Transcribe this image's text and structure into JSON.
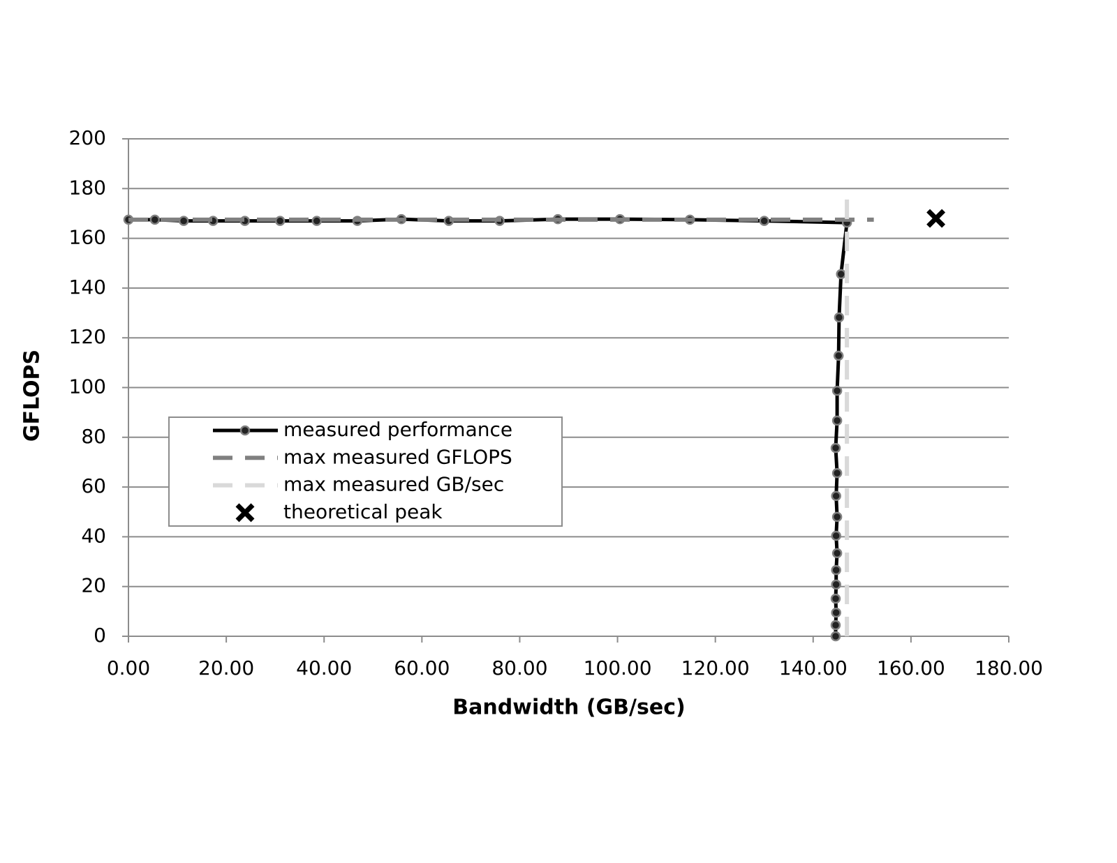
{
  "chart_data": {
    "type": "line",
    "x_label": "Bandwidth (GB/sec)",
    "y_label": "GFLOPS",
    "xlim": [
      0,
      180
    ],
    "ylim": [
      0,
      200
    ],
    "xticks": [
      {
        "value": 0,
        "label": "0.00"
      },
      {
        "value": 20,
        "label": "20.00"
      },
      {
        "value": 40,
        "label": "40.00"
      },
      {
        "value": 60,
        "label": "60.00"
      },
      {
        "value": 80,
        "label": "80.00"
      },
      {
        "value": 100,
        "label": "100.00"
      },
      {
        "value": 120,
        "label": "120.00"
      },
      {
        "value": 140,
        "label": "140.00"
      },
      {
        "value": 160,
        "label": "160.00"
      },
      {
        "value": 180,
        "label": "180.00"
      }
    ],
    "yticks": [
      0,
      20,
      40,
      60,
      80,
      100,
      120,
      140,
      160,
      180,
      200
    ],
    "grid": true,
    "legend": "center-left",
    "series": [
      {
        "name": "measured performance",
        "color": "#000000",
        "marker": "circle",
        "dash": false,
        "x": [
          0,
          5.4,
          11.3,
          17.3,
          23.8,
          31,
          38.5,
          46.8,
          55.8,
          65.5,
          75.9,
          87.8,
          100.5,
          114.8,
          130,
          146.9,
          145.7,
          145.3,
          145.2,
          144.9,
          144.9,
          144.6,
          144.9,
          144.7,
          144.9,
          144.7,
          144.9,
          144.7,
          144.7,
          144.6,
          144.7,
          144.6,
          144.6
        ],
        "values": [
          167.5,
          167.5,
          167,
          167,
          167,
          167,
          167,
          167,
          167.7,
          167,
          167,
          167.7,
          167.7,
          167.5,
          167,
          166.3,
          145.6,
          128.2,
          112.8,
          98.7,
          86.7,
          75.7,
          65.6,
          56.4,
          48,
          40.4,
          33.4,
          26.6,
          20.8,
          15.1,
          9.5,
          4.5,
          0
        ]
      },
      {
        "name": "max measured GFLOPS",
        "color": "#808080",
        "marker": "none",
        "dash": true,
        "x": [
          0,
          152.4
        ],
        "values": [
          167.5,
          167.5
        ]
      },
      {
        "name": "max measured GB/sec",
        "color": "#d9d9d9",
        "marker": "none",
        "dash": true,
        "x": [
          146.9,
          146.9
        ],
        "values": [
          0,
          176.2
        ]
      },
      {
        "name": "theoretical peak",
        "color": "#000000",
        "marker": "x",
        "dash": false,
        "noline": true,
        "x": [
          165.1
        ],
        "values": [
          168
        ]
      }
    ]
  }
}
